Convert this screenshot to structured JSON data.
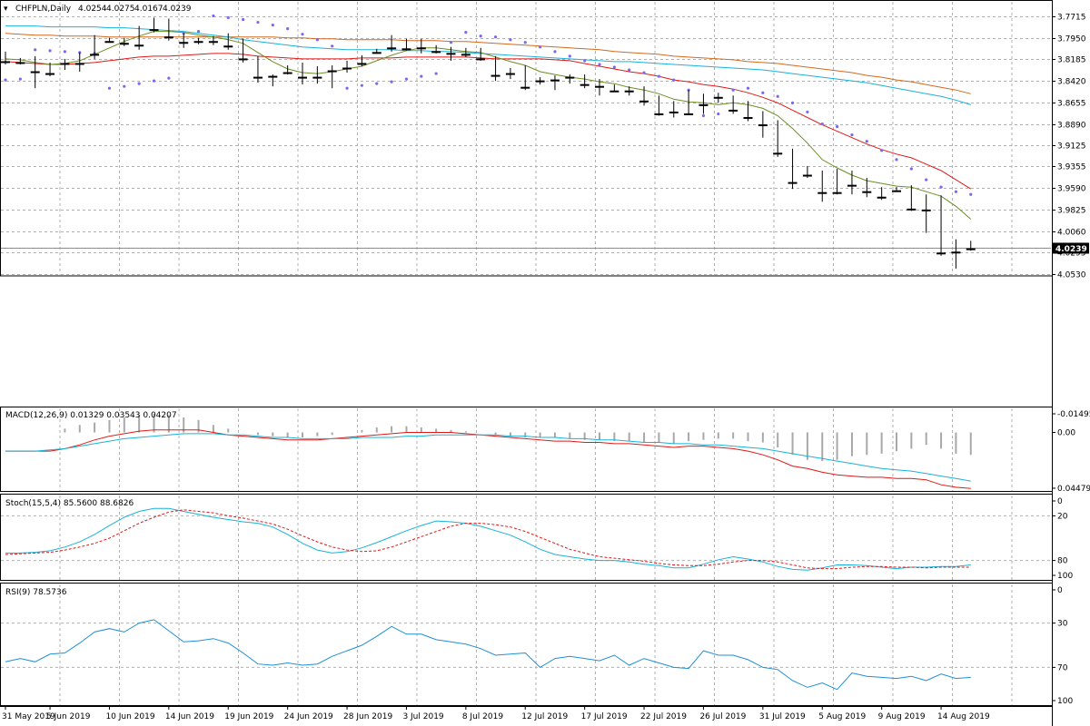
{
  "chart_data": {
    "type": "candlestick",
    "symbol_header": "CHFPLN,Daily",
    "ohlc_header": [
      "4.0254",
      "4.0275",
      "4.0167",
      "4.0239"
    ],
    "current_price_label": "4.0239",
    "current_price": 4.0239,
    "price_axis": {
      "range": [
        3.7715,
        4.053
      ],
      "ticks": [
        "4.0530",
        "4.0295",
        "4.0060",
        "3.9825",
        "3.9590",
        "3.9355",
        "3.9125",
        "3.8890",
        "3.8655",
        "3.8420",
        "3.8185",
        "3.7950",
        "3.7715"
      ]
    },
    "date_labels": [
      {
        "i": 0,
        "label": "31 May 2019"
      },
      {
        "i": 3,
        "label": "5 Jun 2019"
      },
      {
        "i": 7,
        "label": "10 Jun 2019"
      },
      {
        "i": 11,
        "label": "14 Jun 2019"
      },
      {
        "i": 15,
        "label": "19 Jun 2019"
      },
      {
        "i": 19,
        "label": "24 Jun 2019"
      },
      {
        "i": 23,
        "label": "28 Jun 2019"
      },
      {
        "i": 27,
        "label": "3 Jul 2019"
      },
      {
        "i": 31,
        "label": "8 Jul 2019"
      },
      {
        "i": 35,
        "label": "12 Jul 2019"
      },
      {
        "i": 39,
        "label": "17 Jul 2019"
      },
      {
        "i": 43,
        "label": "22 Jul 2019"
      },
      {
        "i": 47,
        "label": "26 Jul 2019"
      },
      {
        "i": 51,
        "label": "31 Jul 2019"
      },
      {
        "i": 55,
        "label": "5 Aug 2019"
      },
      {
        "i": 59,
        "label": "9 Aug 2019"
      },
      {
        "i": 63,
        "label": "14 Aug 2019"
      }
    ],
    "candles": [
      [
        3.818,
        3.824,
        3.81,
        3.821
      ],
      [
        3.819,
        3.824,
        3.817,
        3.822
      ],
      [
        3.822,
        3.85,
        3.815,
        3.832
      ],
      [
        3.834,
        3.837,
        3.822,
        3.824
      ],
      [
        3.822,
        3.83,
        3.818,
        3.823
      ],
      [
        3.823,
        3.832,
        3.811,
        3.814
      ],
      [
        3.813,
        3.818,
        3.792,
        3.797
      ],
      [
        3.798,
        3.8,
        3.795,
        3.799
      ],
      [
        3.797,
        3.804,
        3.795,
        3.801
      ],
      [
        3.803,
        3.808,
        3.782,
        3.786
      ],
      [
        3.786,
        3.789,
        3.773,
        3.778
      ],
      [
        3.779,
        3.798,
        3.774,
        3.794
      ],
      [
        3.794,
        3.806,
        3.79,
        3.8
      ],
      [
        3.799,
        3.802,
        3.795,
        3.798
      ],
      [
        3.798,
        3.803,
        3.793,
        3.799
      ],
      [
        3.797,
        3.808,
        3.79,
        3.804
      ],
      [
        3.801,
        3.822,
        3.796,
        3.818
      ],
      [
        3.818,
        3.844,
        3.815,
        3.838
      ],
      [
        3.837,
        3.848,
        3.835,
        3.834
      ],
      [
        3.831,
        3.835,
        3.825,
        3.833
      ],
      [
        3.829,
        3.846,
        3.822,
        3.838
      ],
      [
        3.838,
        3.845,
        3.826,
        3.828
      ],
      [
        3.831,
        3.85,
        3.825,
        3.83
      ],
      [
        3.828,
        3.833,
        3.82,
        3.824
      ],
      [
        3.823,
        3.826,
        3.814,
        3.819
      ],
      [
        3.811,
        3.811,
        3.807,
        3.808
      ],
      [
        3.806,
        3.81,
        3.792,
        3.799
      ],
      [
        3.807,
        3.809,
        3.796,
        3.796
      ],
      [
        3.8,
        3.812,
        3.796,
        3.806
      ],
      [
        3.807,
        3.812,
        3.803,
        3.81
      ],
      [
        3.811,
        3.82,
        3.805,
        3.812
      ],
      [
        3.81,
        3.816,
        3.806,
        3.813
      ],
      [
        3.81,
        3.82,
        3.806,
        3.818
      ],
      [
        3.817,
        3.842,
        3.815,
        3.836
      ],
      [
        3.833,
        3.84,
        3.828,
        3.834
      ],
      [
        3.836,
        3.852,
        3.825,
        3.849
      ],
      [
        3.841,
        3.846,
        3.838,
        3.842
      ],
      [
        3.841,
        3.852,
        3.836,
        3.839
      ],
      [
        3.837,
        3.845,
        3.835,
        3.838
      ],
      [
        3.837,
        3.85,
        3.835,
        3.846
      ],
      [
        3.846,
        3.858,
        3.84,
        3.848
      ],
      [
        3.851,
        3.854,
        3.846,
        3.853
      ],
      [
        3.853,
        3.858,
        3.848,
        3.852
      ],
      [
        3.852,
        3.869,
        3.848,
        3.864
      ],
      [
        3.863,
        3.88,
        3.858,
        3.878
      ],
      [
        3.876,
        3.882,
        3.864,
        3.873
      ],
      [
        3.878,
        3.879,
        3.852,
        3.857
      ],
      [
        3.858,
        3.878,
        3.856,
        3.868
      ],
      [
        3.858,
        3.866,
        3.855,
        3.86
      ],
      [
        3.861,
        3.878,
        3.858,
        3.874
      ],
      [
        3.87,
        3.886,
        3.864,
        3.882
      ],
      [
        3.88,
        3.904,
        3.875,
        3.89
      ],
      [
        3.89,
        3.925,
        3.885,
        3.921
      ],
      [
        3.922,
        3.96,
        3.916,
        3.953
      ],
      [
        3.943,
        3.948,
        3.935,
        3.945
      ],
      [
        3.945,
        3.974,
        3.94,
        3.964
      ],
      [
        3.964,
        3.966,
        3.938,
        3.943
      ],
      [
        3.945,
        3.966,
        3.94,
        3.956
      ],
      [
        3.956,
        3.969,
        3.948,
        3.963
      ],
      [
        3.961,
        3.972,
        3.958,
        3.969
      ],
      [
        3.962,
        3.963,
        3.958,
        3.962
      ],
      [
        3.959,
        3.984,
        3.956,
        3.982
      ],
      [
        3.983,
        4.008,
        3.966,
        3.97
      ],
      [
        3.972,
        4.033,
        3.967,
        4.03
      ],
      [
        4.029,
        4.047,
        4.015,
        4.025
      ],
      [
        4.0254,
        4.0275,
        4.0167,
        4.0239
      ]
    ],
    "ma_fast_olive": [
      3.818,
      3.819,
      3.822,
      3.824,
      3.823,
      3.82,
      3.813,
      3.806,
      3.799,
      3.793,
      3.788,
      3.788,
      3.789,
      3.792,
      3.794,
      3.797,
      3.801,
      3.811,
      3.821,
      3.829,
      3.833,
      3.834,
      3.832,
      3.829,
      3.826,
      3.82,
      3.814,
      3.809,
      3.806,
      3.806,
      3.808,
      3.81,
      3.811,
      3.816,
      3.821,
      3.825,
      3.832,
      3.835,
      3.838,
      3.84,
      3.843,
      3.845,
      3.849,
      3.852,
      3.856,
      3.862,
      3.865,
      3.866,
      3.868,
      3.866,
      3.868,
      3.872,
      3.88,
      3.894,
      3.91,
      3.928,
      3.937,
      3.945,
      3.951,
      3.954,
      3.957,
      3.958,
      3.963,
      3.968,
      3.979,
      3.993
    ],
    "ma_red": [
      3.821,
      3.822,
      3.823,
      3.824,
      3.824,
      3.823,
      3.822,
      3.82,
      3.818,
      3.816,
      3.815,
      3.815,
      3.814,
      3.813,
      3.812,
      3.812,
      3.813,
      3.815,
      3.816,
      3.817,
      3.818,
      3.818,
      3.818,
      3.818,
      3.817,
      3.817,
      3.817,
      3.816,
      3.816,
      3.816,
      3.816,
      3.816,
      3.817,
      3.818,
      3.818,
      3.818,
      3.818,
      3.819,
      3.82,
      3.823,
      3.826,
      3.829,
      3.832,
      3.834,
      3.837,
      3.841,
      3.843,
      3.846,
      3.848,
      3.851,
      3.855,
      3.86,
      3.866,
      3.874,
      3.882,
      3.89,
      3.897,
      3.904,
      3.911,
      3.917,
      3.922,
      3.926,
      3.933,
      3.94,
      3.95,
      3.96
    ],
    "ma_teal": [
      3.782,
      3.782,
      3.782,
      3.783,
      3.783,
      3.783,
      3.783,
      3.784,
      3.784,
      3.785,
      3.786,
      3.787,
      3.788,
      3.79,
      3.792,
      3.794,
      3.797,
      3.799,
      3.801,
      3.803,
      3.805,
      3.806,
      3.807,
      3.808,
      3.808,
      3.808,
      3.808,
      3.809,
      3.809,
      3.81,
      3.81,
      3.811,
      3.812,
      3.813,
      3.814,
      3.815,
      3.816,
      3.817,
      3.818,
      3.819,
      3.82,
      3.821,
      3.821,
      3.822,
      3.823,
      3.824,
      3.825,
      3.826,
      3.827,
      3.828,
      3.829,
      3.83,
      3.832,
      3.834,
      3.836,
      3.838,
      3.84,
      3.842,
      3.844,
      3.847,
      3.85,
      3.853,
      3.856,
      3.859,
      3.863,
      3.868
    ],
    "ma_orange": [
      3.79,
      3.791,
      3.792,
      3.792,
      3.793,
      3.793,
      3.793,
      3.794,
      3.794,
      3.794,
      3.794,
      3.794,
      3.794,
      3.794,
      3.794,
      3.794,
      3.794,
      3.794,
      3.794,
      3.795,
      3.795,
      3.796,
      3.796,
      3.797,
      3.797,
      3.797,
      3.797,
      3.798,
      3.798,
      3.798,
      3.799,
      3.799,
      3.8,
      3.801,
      3.802,
      3.803,
      3.804,
      3.805,
      3.806,
      3.807,
      3.808,
      3.81,
      3.811,
      3.812,
      3.813,
      3.815,
      3.816,
      3.817,
      3.818,
      3.819,
      3.821,
      3.822,
      3.823,
      3.825,
      3.827,
      3.829,
      3.831,
      3.833,
      3.836,
      3.838,
      3.841,
      3.843,
      3.846,
      3.849,
      3.852,
      3.856
    ],
    "psar": [
      3.841,
      3.84,
      3.808,
      3.809,
      3.81,
      3.811,
      3.812,
      3.85,
      3.848,
      3.845,
      3.842,
      3.839,
      3.79,
      3.788,
      3.771,
      3.773,
      3.775,
      3.778,
      3.781,
      3.785,
      3.791,
      3.797,
      3.804,
      3.85,
      3.847,
      3.845,
      3.843,
      3.84,
      3.837,
      3.834,
      3.8,
      3.789,
      3.793,
      3.794,
      3.797,
      3.8,
      3.805,
      3.81,
      3.815,
      3.82,
      3.824,
      3.827,
      3.83,
      3.833,
      3.837,
      3.841,
      3.852,
      3.88,
      3.878,
      3.852,
      3.85,
      3.855,
      3.859,
      3.866,
      3.876,
      3.889,
      3.892,
      3.901,
      3.908,
      3.918,
      3.928,
      3.938,
      3.95,
      3.958,
      3.963,
      3.966
    ],
    "macd": {
      "header": "MACD(12,26,9) 0.01329 0.03543 0.04207",
      "range": [
        -0.01495,
        0.04479
      ],
      "tick_labels": [
        "0.04479",
        "0.00",
        "-0.01495"
      ],
      "histogram": [
        0.0,
        0.0,
        0.0,
        0.0,
        -0.003,
        -0.006,
        -0.008,
        -0.01,
        -0.012,
        -0.014,
        -0.015,
        -0.014,
        -0.012,
        -0.01,
        -0.006,
        -0.003,
        0.0,
        0.002,
        0.003,
        0.004,
        0.004,
        0.003,
        0.002,
        0.0,
        -0.002,
        -0.004,
        -0.005,
        -0.005,
        -0.004,
        -0.003,
        -0.002,
        -0.001,
        0.0,
        0.002,
        0.003,
        0.004,
        0.004,
        0.004,
        0.005,
        0.006,
        0.006,
        0.007,
        0.007,
        0.008,
        0.008,
        0.009,
        0.007,
        0.006,
        0.005,
        0.005,
        0.007,
        0.008,
        0.012,
        0.018,
        0.022,
        0.023,
        0.022,
        0.019,
        0.018,
        0.017,
        0.015,
        0.013,
        0.01,
        0.013,
        0.017,
        0.018
      ],
      "main_line": [
        0.015,
        0.015,
        0.015,
        0.015,
        0.013,
        0.01,
        0.006,
        0.003,
        0.001,
        -0.001,
        -0.002,
        -0.002,
        -0.002,
        -0.002,
        0.0,
        0.002,
        0.003,
        0.004,
        0.005,
        0.006,
        0.006,
        0.006,
        0.005,
        0.004,
        0.003,
        0.002,
        0.001,
        0.0,
        0.0,
        0.0,
        0.0,
        0.001,
        0.002,
        0.003,
        0.004,
        0.005,
        0.006,
        0.007,
        0.007,
        0.008,
        0.008,
        0.009,
        0.009,
        0.01,
        0.011,
        0.012,
        0.011,
        0.011,
        0.012,
        0.013,
        0.015,
        0.018,
        0.022,
        0.027,
        0.029,
        0.032,
        0.034,
        0.035,
        0.036,
        0.036,
        0.037,
        0.037,
        0.038,
        0.042,
        0.044,
        0.045
      ],
      "signal_line": [
        0.015,
        0.015,
        0.015,
        0.014,
        0.013,
        0.011,
        0.009,
        0.007,
        0.005,
        0.004,
        0.003,
        0.002,
        0.001,
        0.001,
        0.001,
        0.002,
        0.002,
        0.003,
        0.004,
        0.004,
        0.005,
        0.005,
        0.005,
        0.005,
        0.004,
        0.004,
        0.004,
        0.003,
        0.003,
        0.002,
        0.002,
        0.002,
        0.002,
        0.002,
        0.003,
        0.003,
        0.004,
        0.004,
        0.005,
        0.005,
        0.006,
        0.006,
        0.007,
        0.008,
        0.008,
        0.009,
        0.009,
        0.01,
        0.01,
        0.011,
        0.012,
        0.013,
        0.015,
        0.017,
        0.019,
        0.021,
        0.023,
        0.025,
        0.027,
        0.029,
        0.03,
        0.031,
        0.033,
        0.035,
        0.037,
        0.039
      ]
    },
    "stoch": {
      "header": "Stoch(15,5,4) 85.5600 88.6826",
      "range": [
        0,
        100
      ],
      "tick_labels": [
        "100",
        "80",
        "20",
        "0"
      ],
      "main_line": [
        70,
        70,
        69,
        67,
        62,
        55,
        45,
        33,
        22,
        14,
        10,
        10,
        14,
        18,
        22,
        25,
        28,
        30,
        35,
        45,
        57,
        66,
        70,
        68,
        63,
        56,
        48,
        40,
        33,
        27,
        28,
        30,
        34,
        40,
        46,
        55,
        65,
        72,
        75,
        78,
        80,
        80,
        82,
        85,
        87,
        90,
        90,
        85,
        79,
        75,
        78,
        82,
        88,
        92,
        93,
        90,
        86,
        86,
        87,
        89,
        91,
        89,
        89,
        88,
        88,
        86
      ],
      "signal_line": [
        72,
        71,
        70,
        69,
        66,
        62,
        57,
        50,
        40,
        30,
        22,
        15,
        12,
        14,
        16,
        20,
        23,
        27,
        31,
        38,
        47,
        55,
        62,
        66,
        68,
        67,
        62,
        55,
        48,
        41,
        34,
        30,
        30,
        32,
        35,
        41,
        49,
        57,
        65,
        70,
        75,
        77,
        79,
        81,
        84,
        86,
        87,
        87,
        85,
        82,
        80,
        80,
        82,
        86,
        90,
        91,
        91,
        89,
        88,
        88,
        89,
        89,
        90,
        89,
        89,
        89
      ]
    },
    "rsi": {
      "header": "RSI(9) 78.5736",
      "range": [
        0,
        100
      ],
      "tick_labels": [
        "100",
        "70",
        "30",
        "0"
      ],
      "values": [
        65,
        62,
        65,
        58,
        57,
        48,
        38,
        35,
        38,
        30,
        27,
        37,
        47,
        46,
        44,
        48,
        57,
        67,
        68,
        66,
        68,
        67,
        60,
        55,
        50,
        42,
        33,
        40,
        40,
        45,
        47,
        49,
        53,
        59,
        58,
        57,
        70,
        62,
        60,
        62,
        64,
        59,
        68,
        62,
        66,
        70,
        71,
        55,
        59,
        59,
        63,
        70,
        72,
        82,
        88,
        84,
        90,
        75,
        78,
        79,
        80,
        78,
        82,
        76,
        80,
        79
      ]
    }
  }
}
